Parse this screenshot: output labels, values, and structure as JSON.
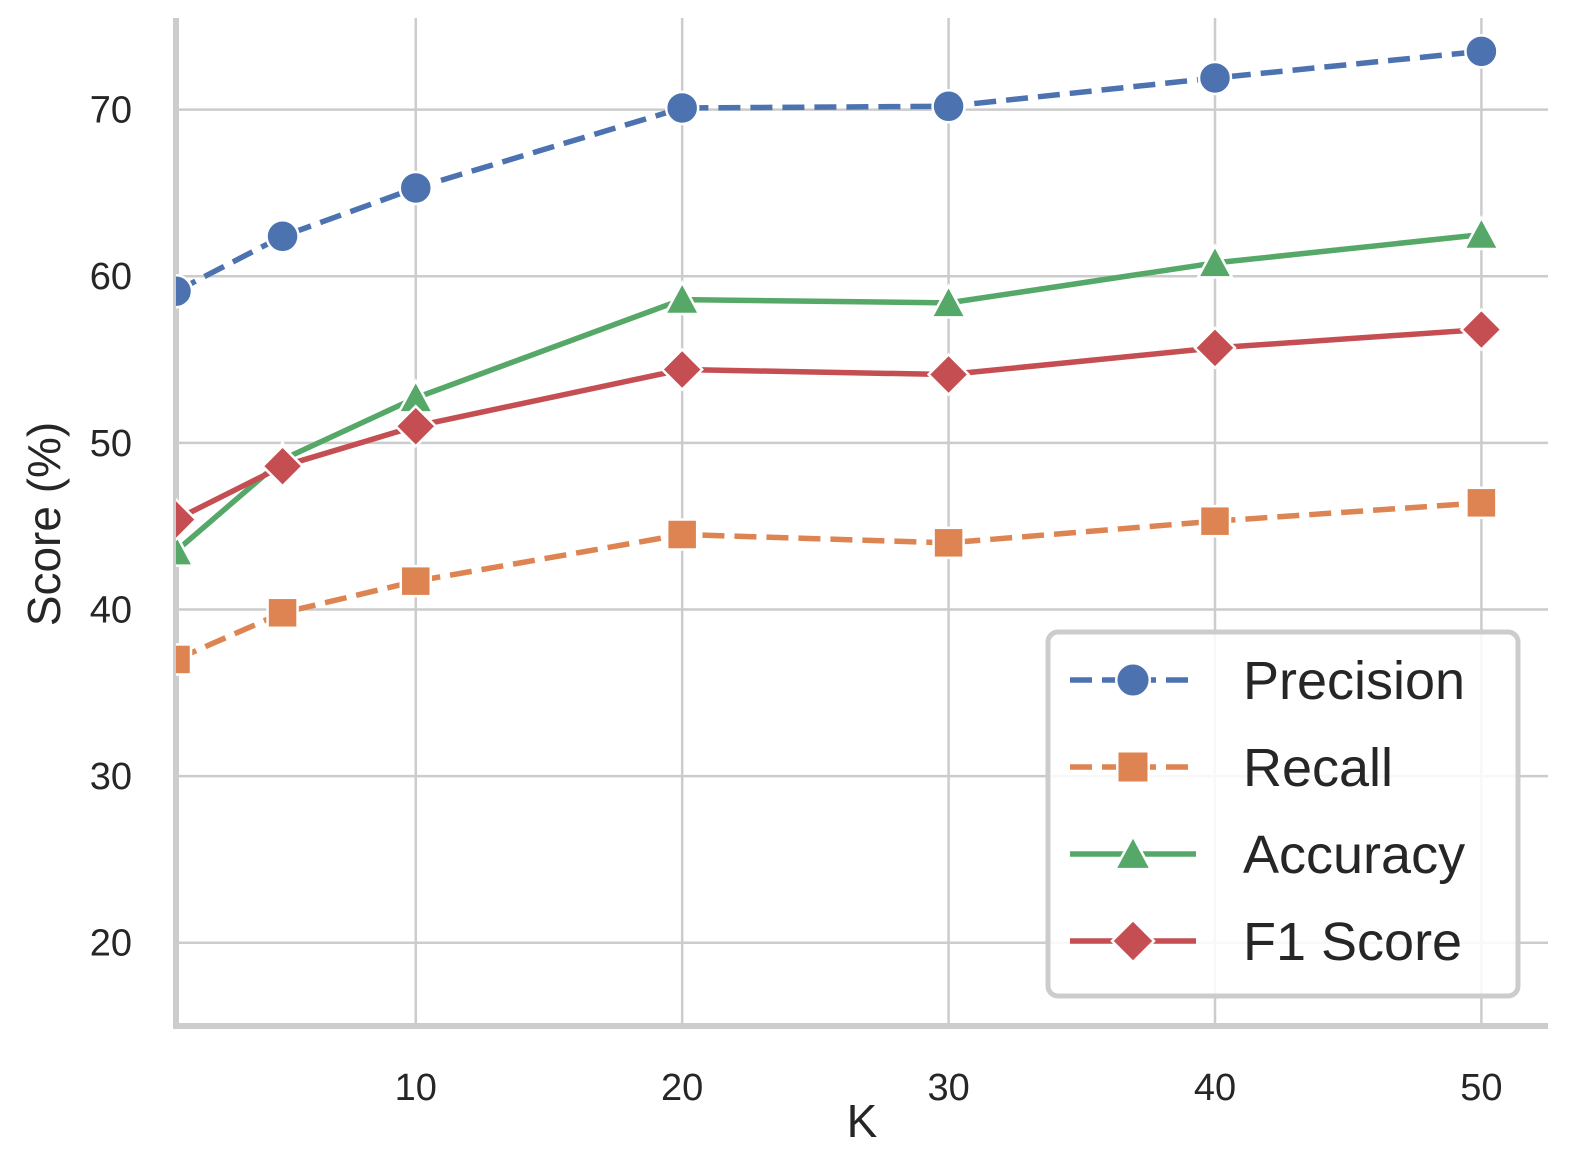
{
  "chart_data": {
    "type": "line",
    "title": "",
    "xlabel": "K",
    "ylabel": "Score (%)",
    "xlim": [
      1,
      52.5
    ],
    "ylim": [
      15,
      75.5
    ],
    "xticks": [
      10,
      20,
      30,
      40,
      50
    ],
    "yticks": [
      20,
      30,
      40,
      50,
      60,
      70
    ],
    "x": [
      1,
      5,
      10,
      20,
      30,
      40,
      50
    ],
    "grid": true,
    "legend_position": "bottom-right",
    "series": [
      {
        "name": "Precision",
        "values": [
          59.1,
          62.4,
          65.3,
          70.1,
          70.2,
          71.9,
          73.5
        ],
        "color": "#4c72b0",
        "line_style": "dashed",
        "marker": "circle"
      },
      {
        "name": "Recall",
        "values": [
          37.0,
          39.8,
          41.7,
          44.5,
          44.0,
          45.3,
          46.4
        ],
        "color": "#dd8452",
        "line_style": "dashed",
        "marker": "square"
      },
      {
        "name": "Accuracy",
        "values": [
          43.5,
          49.0,
          52.7,
          58.6,
          58.4,
          60.8,
          62.5
        ],
        "color": "#55a868",
        "line_style": "solid",
        "marker": "triangle"
      },
      {
        "name": "F1 Score",
        "values": [
          45.4,
          48.6,
          51.0,
          54.4,
          54.1,
          55.7,
          56.8
        ],
        "color": "#c44e52",
        "line_style": "solid",
        "marker": "diamond"
      }
    ]
  }
}
